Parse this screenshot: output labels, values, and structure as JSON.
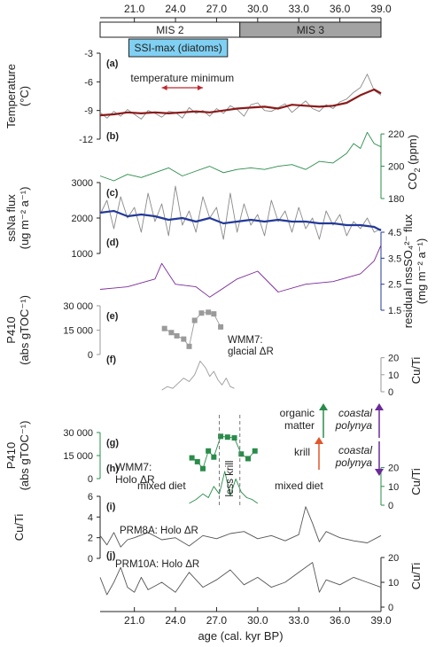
{
  "chart_data": {
    "type": "line",
    "title": "",
    "x_axis": {
      "label": "age (cal. kyr BP)",
      "range": [
        18.5,
        39.0
      ],
      "ticks": [
        "21.0",
        "24.0",
        "27.0",
        "30.0",
        "33.0",
        "36.0",
        "39.0"
      ],
      "tick_values": [
        21.0,
        24.0,
        27.0,
        30.0,
        33.0,
        36.0,
        39.0
      ]
    },
    "stage_bar": {
      "mis2": {
        "label": "MIS 2",
        "range": [
          18.5,
          28.7
        ],
        "color": "#ffffff"
      },
      "mis3": {
        "label": "MIS 3",
        "range": [
          28.7,
          39.0
        ],
        "color": "#a3a3a3"
      },
      "ssi": {
        "label": "SSI-max (diatoms)",
        "range": [
          20.6,
          27.8
        ],
        "color": "#7fd0f2"
      }
    },
    "panels": [
      {
        "id": "a",
        "label": "(a)",
        "ylabel": "Temperature (°C)",
        "ylabel_lines": [
          "Temperature",
          "(°C)"
        ],
        "ylim": [
          -12,
          -3
        ],
        "ticks": [
          "-3",
          "-6",
          "-9",
          "-12"
        ],
        "tick_values": [
          -3,
          -6,
          -9,
          -12
        ],
        "side": "left",
        "annotation": "temperature minimum",
        "annotation_range": [
          23.0,
          26.0
        ],
        "annotation_color": "#c0262d",
        "series": [
          {
            "role": "raw",
            "color": "#8a8a8a",
            "x": [
              18.5,
              19.0,
              19.5,
              20.0,
              20.5,
              21.0,
              21.5,
              22.0,
              22.5,
              23.0,
              23.5,
              24.0,
              24.5,
              25.0,
              25.5,
              26.0,
              26.5,
              27.0,
              27.5,
              28.0,
              28.5,
              29.0,
              29.5,
              30.0,
              30.5,
              31.0,
              31.5,
              32.0,
              32.5,
              33.0,
              33.5,
              34.0,
              34.5,
              35.0,
              35.5,
              36.0,
              36.5,
              37.0,
              37.5,
              38.0,
              38.5,
              39.0
            ],
            "y": [
              -9.2,
              -9.8,
              -9.1,
              -9.6,
              -8.9,
              -9.4,
              -9.9,
              -9.0,
              -9.3,
              -9.7,
              -9.1,
              -9.2,
              -9.8,
              -8.7,
              -9.3,
              -9.0,
              -9.6,
              -8.8,
              -9.3,
              -8.5,
              -8.9,
              -9.6,
              -8.4,
              -8.2,
              -9.0,
              -9.1,
              -8.7,
              -8.3,
              -9.2,
              -8.6,
              -8.0,
              -8.8,
              -9.1,
              -8.4,
              -8.8,
              -8.1,
              -7.8,
              -7.1,
              -6.6,
              -5.2,
              -6.9,
              -7.4
            ]
          },
          {
            "role": "smoothed",
            "color": "#8b1a1a",
            "x": [
              18.5,
              19.5,
              20.5,
              21.5,
              22.5,
              23.5,
              24.5,
              25.5,
              26.5,
              27.5,
              28.5,
              29.5,
              30.5,
              31.5,
              32.5,
              33.5,
              34.5,
              35.5,
              36.5,
              37.5,
              38.5,
              39.0
            ],
            "y": [
              -9.5,
              -9.4,
              -9.2,
              -9.3,
              -9.2,
              -9.3,
              -9.2,
              -9.1,
              -9.2,
              -9.0,
              -8.8,
              -8.7,
              -8.6,
              -8.8,
              -8.4,
              -8.5,
              -8.6,
              -8.5,
              -8.2,
              -7.4,
              -6.8,
              -7.2
            ]
          }
        ]
      },
      {
        "id": "b",
        "label": "(b)",
        "ylabel": "CO2 (ppm)",
        "ylabel_parts": [
          "CO",
          "2",
          " (ppm)"
        ],
        "ylim": [
          180,
          225
        ],
        "ticks": [
          "220",
          "200",
          "180"
        ],
        "tick_values": [
          220,
          200,
          180
        ],
        "side": "right",
        "color": "#2a8c4a",
        "series": [
          {
            "role": "raw",
            "color": "#2a8c4a",
            "x": [
              18.5,
              19.5,
              20.5,
              21.5,
              22.5,
              23.5,
              24.5,
              25.5,
              26.5,
              27.5,
              28.5,
              29.5,
              30.5,
              31.5,
              32.5,
              33.5,
              34.5,
              35.5,
              36.5,
              37.0,
              37.5,
              38.0,
              38.5,
              39.0
            ],
            "y": [
              194,
              191,
              195,
              193,
              196,
              199,
              194,
              197,
              200,
              196,
              198,
              199,
              198,
              200,
              201,
              198,
              203,
              202,
              208,
              214,
              211,
              221,
              214,
              212
            ]
          }
        ]
      },
      {
        "id": "c",
        "label": "(c)",
        "ylabel": "ssNa flux (ug m-2 a-1)",
        "ylabel_lines": [
          "ssNa flux",
          "(ug m⁻² a⁻¹)"
        ],
        "ylim": [
          1000,
          3000
        ],
        "ticks": [
          "3000",
          "2000",
          "1000"
        ],
        "tick_values": [
          3000,
          2000,
          1000
        ],
        "side": "left",
        "series": [
          {
            "role": "raw",
            "color": "#8a8a8a",
            "x": [
              18.5,
              19.0,
              19.5,
              20.0,
              20.5,
              21.0,
              21.5,
              22.0,
              22.5,
              23.0,
              23.5,
              24.0,
              24.5,
              25.0,
              25.5,
              26.0,
              26.5,
              27.0,
              27.5,
              28.0,
              28.5,
              29.0,
              29.5,
              30.0,
              30.5,
              31.0,
              31.5,
              32.0,
              32.5,
              33.0,
              33.5,
              34.0,
              34.5,
              35.0,
              35.5,
              36.0,
              36.5,
              37.0,
              37.5,
              38.0,
              38.5,
              39.0
            ],
            "y": [
              2100,
              2500,
              1700,
              2600,
              2000,
              2300,
              1600,
              2700,
              1900,
              2400,
              1500,
              2900,
              1800,
              2200,
              1600,
              2600,
              2000,
              2300,
              1400,
              2700,
              1600,
              2400,
              1800,
              2100,
              1500,
              2500,
              1900,
              2200,
              1600,
              2300,
              1700,
              2000,
              1400,
              2200,
              1800,
              2100,
              1500,
              1900,
              1700,
              2000,
              1600,
              1700
            ]
          },
          {
            "role": "smoothed",
            "color": "#233a9a",
            "x": [
              18.5,
              19.5,
              20.5,
              21.5,
              22.5,
              23.5,
              24.5,
              25.5,
              26.5,
              27.5,
              28.5,
              29.5,
              30.5,
              31.5,
              32.5,
              33.5,
              34.5,
              35.5,
              36.5,
              37.5,
              38.5,
              39.0
            ],
            "y": [
              2150,
              2200,
              2050,
              2100,
              2050,
              1950,
              2000,
              1900,
              2000,
              1850,
              1900,
              1950,
              1900,
              1950,
              1900,
              1900,
              1850,
              1850,
              1800,
              1800,
              1750,
              1650
            ]
          }
        ]
      },
      {
        "id": "d",
        "label": "(d)",
        "ylabel": "residual nssSO42- flux (mg m-2 a-1)",
        "ylabel_lines": [
          "residual nssSO₄²⁻ flux",
          "(mg m⁻² a⁻¹)"
        ],
        "ylim": [
          1.5,
          4.5
        ],
        "ticks": [
          "4.5",
          "3.5",
          "2.5",
          "1.5"
        ],
        "tick_values": [
          4.5,
          3.5,
          2.5,
          1.5
        ],
        "side": "right",
        "tick_color": "#233a9a",
        "series": [
          {
            "role": "raw",
            "color": "#7a2a9a",
            "x": [
              18.5,
              20.5,
              22.5,
              23.0,
              24.0,
              25.5,
              26.5,
              28.5,
              30.0,
              31.5,
              33.5,
              35.5,
              37.5,
              38.5,
              39.0
            ],
            "y": [
              2.3,
              2.4,
              2.7,
              3.3,
              2.5,
              2.4,
              2.0,
              2.7,
              3.0,
              2.2,
              2.5,
              2.6,
              2.9,
              3.4,
              4.0
            ]
          }
        ]
      },
      {
        "id": "e",
        "label": "(e)",
        "ylabel": "P410 (abs gTOC-1)",
        "ylabel_lines": [
          "P410",
          "(abs gTOC⁻¹)"
        ],
        "ylim": [
          0,
          30000
        ],
        "ticks": [
          "30 000",
          "15 000",
          "0"
        ],
        "tick_values": [
          30000,
          15000,
          0
        ],
        "side": "left",
        "color": "#9a9a9a",
        "series": [
          {
            "role": "markers",
            "color": "#9a9a9a",
            "x": [
              23.2,
              23.7,
              24.1,
              24.6,
              25.0,
              25.4,
              25.9,
              26.4,
              26.8,
              27.3
            ],
            "y": [
              16000,
              13500,
              11500,
              9500,
              5000,
              21000,
              25500,
              26000,
              25000,
              17000
            ]
          }
        ]
      },
      {
        "id": "f",
        "label": "(f)",
        "ylabel": "Cu/Ti",
        "ylim": [
          0,
          25
        ],
        "ticks": [
          "20",
          "10",
          "0"
        ],
        "tick_values": [
          20,
          10,
          0
        ],
        "side": "right",
        "color": "#9a9a9a",
        "annotation": "WMM7: glacial ΔR",
        "annotation_lines": [
          "WMM7:",
          "glacial ΔR"
        ],
        "series": [
          {
            "role": "raw",
            "color": "#9a9a9a",
            "x": [
              23.0,
              23.4,
              23.8,
              24.2,
              24.6,
              25.0,
              25.4,
              25.8,
              26.2,
              26.5,
              26.8,
              27.1,
              27.4,
              27.7,
              28.0,
              28.3
            ],
            "y": [
              1,
              3,
              2,
              5,
              8,
              6,
              10,
              18,
              14,
              9,
              12,
              7,
              4,
              8,
              3,
              2
            ]
          }
        ]
      },
      {
        "id": "g",
        "label": "(g)",
        "ylabel": "P410 (abs gTOC-1)",
        "ylabel_lines": [
          "P410",
          "(abs gTOC⁻¹)"
        ],
        "ylim": [
          0,
          30000
        ],
        "ticks": [
          "30 000",
          "15 000",
          "0"
        ],
        "tick_values": [
          30000,
          15000,
          0
        ],
        "side": "left",
        "color": "#2a8c4a",
        "annotation": "WMM7: Holo ΔR",
        "annotation_lines": [
          "WMM7:",
          "Holo ΔR"
        ],
        "series": [
          {
            "role": "markers",
            "color": "#2a8c4a",
            "x": [
              25.2,
              25.6,
              26.0,
              26.4,
              26.8,
              27.3,
              27.8,
              28.3,
              28.8,
              29.3,
              29.8
            ],
            "y": [
              13500,
              11000,
              6500,
              18000,
              14000,
              27500,
              27000,
              26500,
              16000,
              13000,
              18000
            ]
          }
        ]
      },
      {
        "id": "h",
        "label": "(h)",
        "ylabel": "Cu/Ti",
        "ylim": [
          0,
          25
        ],
        "ticks": [
          "20",
          "10",
          "0"
        ],
        "tick_values": [
          20,
          10,
          0
        ],
        "side": "right",
        "color": "#2a8c4a",
        "series": [
          {
            "role": "raw",
            "color": "#2a8c4a",
            "x": [
              25.0,
              25.5,
              26.0,
              26.4,
              26.8,
              27.2,
              27.6,
              28.0,
              28.4,
              28.8,
              29.2,
              29.6,
              30.0
            ],
            "y": [
              1,
              3,
              6,
              4,
              10,
              6,
              18,
              5,
              14,
              7,
              4,
              3,
              1
            ]
          }
        ]
      },
      {
        "id": "i",
        "label": "(i)",
        "ylabel": "Cu/Ti",
        "ylim": [
          0,
          6
        ],
        "ticks": [
          "6",
          "4",
          "2",
          "0"
        ],
        "tick_values": [
          6,
          4,
          2,
          0
        ],
        "side": "left",
        "annotation": "PRM8A: Holo ΔR",
        "series": [
          {
            "role": "raw",
            "color": "#555555",
            "x": [
              18.5,
              19.0,
              19.5,
              20.0,
              20.5,
              21.0,
              22.0,
              23.0,
              24.0,
              25.0,
              26.0,
              27.0,
              28.0,
              29.0,
              30.0,
              31.0,
              32.0,
              33.0,
              33.5,
              34.0,
              34.5,
              35.0,
              36.0,
              37.0,
              38.0,
              39.0
            ],
            "y": [
              2.2,
              1.3,
              2.5,
              1.1,
              1.8,
              2.0,
              2.5,
              1.8,
              2.0,
              1.2,
              2.2,
              1.9,
              2.4,
              2.6,
              1.9,
              2.2,
              1.7,
              2.3,
              5.0,
              3.4,
              1.6,
              2.6,
              2.0,
              1.7,
              1.5,
              2.2
            ]
          }
        ]
      },
      {
        "id": "j",
        "label": "(j)",
        "ylabel": "Cu/Ti",
        "ylim": [
          0,
          25
        ],
        "ticks": [
          "20",
          "10",
          "0"
        ],
        "tick_values": [
          20,
          10,
          0
        ],
        "side": "right",
        "annotation": "PRM10A: Holo ΔR",
        "series": [
          {
            "role": "raw",
            "color": "#555555",
            "x": [
              18.5,
              19.0,
              19.5,
              20.0,
              20.5,
              21.0,
              21.5,
              22.0,
              23.0,
              24.0,
              25.0,
              26.0,
              27.0,
              28.0,
              29.0,
              30.0,
              31.0,
              32.0,
              33.0,
              34.0,
              34.5,
              35.0,
              36.0,
              37.0,
              38.0,
              39.0
            ],
            "y": [
              12,
              5,
              10,
              16,
              8,
              6,
              12,
              7,
              10,
              6,
              14,
              8,
              11,
              15,
              9,
              12,
              8,
              10,
              14,
              18,
              6,
              11,
              9,
              12,
              10,
              8
            ]
          }
        ]
      }
    ],
    "overlay": {
      "lines": [
        {
          "x": 27.2,
          "color": "#777777",
          "style": "dashed"
        },
        {
          "x": 28.7,
          "color": "#777777",
          "style": "dashed"
        }
      ],
      "less_krill": {
        "text": "less krill",
        "color": "#8b5a3c"
      },
      "mixed_diet_left": {
        "text": "mixed diet",
        "color": "#e0572a"
      },
      "mixed_diet_right": {
        "text": "mixed diet",
        "color": "#e0572a"
      },
      "organic_matter": {
        "lines": [
          "organic",
          "matter"
        ],
        "color": "#2a8c4a"
      },
      "coastal_polynya_up": {
        "lines": [
          "coastal",
          "polynya"
        ],
        "color": "#6a2a9a"
      },
      "krill": {
        "text": "krill",
        "color": "#e0572a"
      },
      "coastal_polynya_down": {
        "lines": [
          "coastal",
          "polynya"
        ],
        "color": "#6a2a9a"
      }
    }
  }
}
